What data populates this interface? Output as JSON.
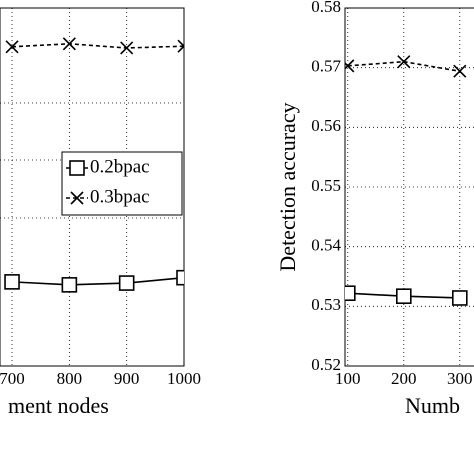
{
  "chart_data": [
    {
      "type": "line",
      "x_label": "ment nodes",
      "x": [
        700,
        800,
        900,
        1000
      ],
      "xlim": [
        679,
        1000
      ],
      "xticks": [
        700,
        800,
        900,
        1000
      ],
      "ylim": [
        0.52,
        0.58
      ],
      "grid": true,
      "series": [
        {
          "name": "0.2bpac",
          "color": "#000000",
          "marker": "square",
          "dashed": false,
          "values": [
            0.5341,
            0.5336,
            0.5339,
            0.5348
          ]
        },
        {
          "name": "0.3bpac",
          "color": "#000000",
          "marker": "x",
          "dashed": true,
          "values": [
            0.5735,
            0.574,
            0.5733,
            0.5736
          ]
        }
      ],
      "legend": "right"
    },
    {
      "type": "line",
      "x_label": "Numb",
      "y_label": "Detection accuracy",
      "x": [
        100,
        200,
        300
      ],
      "xlim": [
        95,
        330
      ],
      "xticks": [
        100,
        200,
        300
      ],
      "ylim": [
        0.52,
        0.58
      ],
      "yticks": [
        0.52,
        0.53,
        0.54,
        0.55,
        0.56,
        0.57,
        0.58
      ],
      "grid": true,
      "series": [
        {
          "name": "0.2bpac",
          "color": "#000000",
          "marker": "square",
          "dashed": false,
          "values": [
            0.5322,
            0.5317,
            0.5314
          ]
        },
        {
          "name": "0.3bpac",
          "color": "#000000",
          "marker": "x",
          "dashed": true,
          "values": [
            0.5703,
            0.571,
            0.5694
          ]
        }
      ]
    }
  ]
}
